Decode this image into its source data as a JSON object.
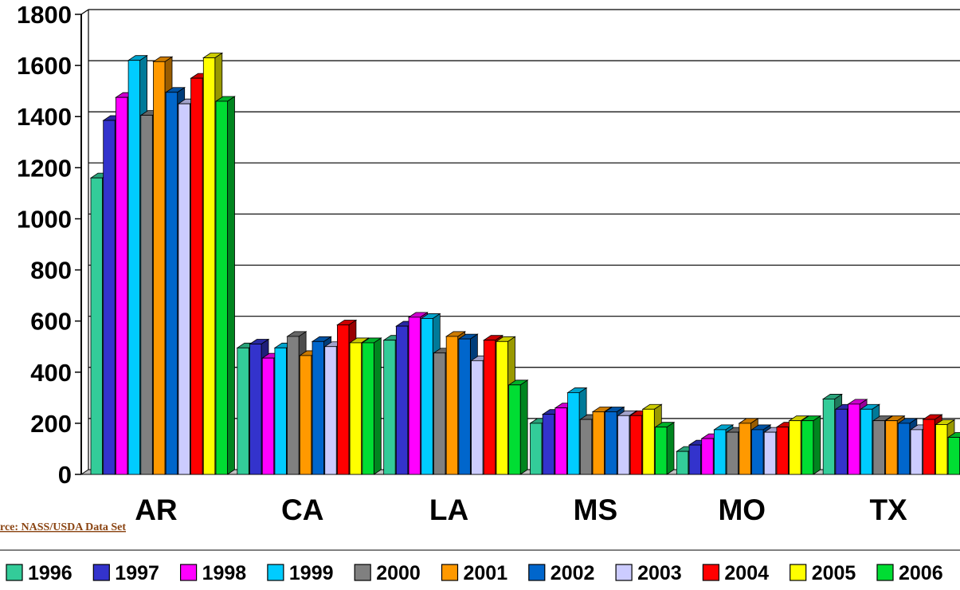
{
  "chart_data": {
    "type": "bar",
    "title": "",
    "xlabel": "",
    "ylabel": "",
    "ylim": [
      0,
      1800
    ],
    "yticks": [
      0,
      200,
      400,
      600,
      800,
      1000,
      1200,
      1400,
      1600,
      1800
    ],
    "grid": true,
    "legend_position": "bottom",
    "categories": [
      "AR",
      "CA",
      "LA",
      "MS",
      "MO",
      "TX"
    ],
    "series": [
      {
        "name": "1996",
        "color": "#33cc99",
        "values": [
          1160,
          495,
          525,
          200,
          90,
          295
        ]
      },
      {
        "name": "1997",
        "color": "#3333cc",
        "values": [
          1385,
          510,
          580,
          235,
          115,
          255
        ]
      },
      {
        "name": "1998",
        "color": "#ff00ff",
        "values": [
          1475,
          455,
          615,
          260,
          140,
          275
        ]
      },
      {
        "name": "1999",
        "color": "#00ccff",
        "values": [
          1620,
          495,
          610,
          320,
          175,
          255
        ]
      },
      {
        "name": "2000",
        "color": "#808080",
        "values": [
          1405,
          540,
          475,
          215,
          165,
          210
        ]
      },
      {
        "name": "2001",
        "color": "#ff9900",
        "values": [
          1615,
          465,
          540,
          245,
          200,
          210
        ]
      },
      {
        "name": "2002",
        "color": "#0066cc",
        "values": [
          1495,
          520,
          530,
          245,
          175,
          200
        ]
      },
      {
        "name": "2003",
        "color": "#ccccff",
        "values": [
          1450,
          500,
          445,
          230,
          165,
          175
        ]
      },
      {
        "name": "2004",
        "color": "#ff0000",
        "values": [
          1550,
          585,
          525,
          230,
          185,
          215
        ]
      },
      {
        "name": "2005",
        "color": "#ffff00",
        "values": [
          1630,
          515,
          520,
          255,
          210,
          195
        ]
      },
      {
        "name": "2006",
        "color": "#00dd33",
        "values": [
          1460,
          515,
          350,
          185,
          210,
          145
        ]
      }
    ]
  },
  "source_text": "rce:  NASS/USDA Data Set"
}
